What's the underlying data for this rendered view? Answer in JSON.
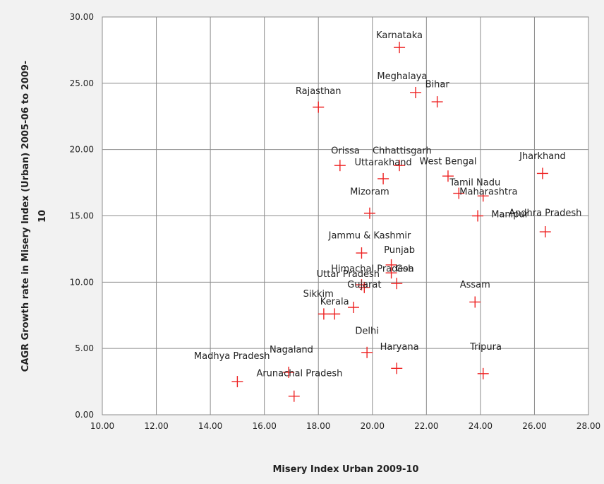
{
  "chart_data": {
    "type": "scatter",
    "title": "",
    "xlabel": "Misery Index Urban 2009-10",
    "ylabel_lines": [
      "CAGR Growth rate in Misery Index (Urban) 2005-06 to 2009-",
      "10"
    ],
    "xlim": [
      10,
      28
    ],
    "ylim": [
      0,
      30
    ],
    "x_ticks": [
      "10.00",
      "12.00",
      "14.00",
      "16.00",
      "18.00",
      "20.00",
      "22.00",
      "24.00",
      "26.00",
      "28.00"
    ],
    "y_ticks": [
      "0.00",
      "5.00",
      "10.00",
      "15.00",
      "20.00",
      "25.00",
      "30.00"
    ],
    "grid": true,
    "legend": "none",
    "marker": "plus",
    "marker_color": "#ee2222",
    "points": [
      {
        "label": "Karnataka",
        "x": 21.0,
        "y": 27.7
      },
      {
        "label": "Meghalaya",
        "x": 21.6,
        "y": 24.3
      },
      {
        "label": "Bihar",
        "x": 22.4,
        "y": 23.6
      },
      {
        "label": "Rajasthan",
        "x": 18.0,
        "y": 23.2
      },
      {
        "label": "Orissa",
        "x": 18.8,
        "y": 18.8
      },
      {
        "label": "Chhattisgarh",
        "x": 21.0,
        "y": 18.8
      },
      {
        "label": "Uttarakhand",
        "x": 20.4,
        "y": 17.8
      },
      {
        "label": "West Bengal",
        "x": 22.8,
        "y": 18.0
      },
      {
        "label": "Jharkhand",
        "x": 26.3,
        "y": 18.2
      },
      {
        "label": "Tamil Nadu",
        "x": 23.2,
        "y": 16.7
      },
      {
        "label": "Maharashtra",
        "x": 24.1,
        "y": 16.5
      },
      {
        "label": "Mizoram",
        "x": 19.9,
        "y": 15.2
      },
      {
        "label": "Manipur",
        "x": 23.9,
        "y": 15.0
      },
      {
        "label": "Andhra Pradesh",
        "x": 26.4,
        "y": 13.8
      },
      {
        "label": "Jammu & Kashmir",
        "x": 19.6,
        "y": 12.2
      },
      {
        "label": "Punjab",
        "x": 20.7,
        "y": 11.3
      },
      {
        "label": "Himachal Pradesh",
        "x": 20.7,
        "y": 10.7
      },
      {
        "label": "Uttar Pradesh",
        "x": 19.6,
        "y": 9.8
      },
      {
        "label": "Goa",
        "x": 20.9,
        "y": 9.9
      },
      {
        "label": "Gujarat",
        "x": 19.7,
        "y": 9.6
      },
      {
        "label": "Assam",
        "x": 23.8,
        "y": 8.5
      },
      {
        "label": "Sikkim",
        "x": 18.2,
        "y": 7.6
      },
      {
        "label": "Kerala",
        "x": 18.6,
        "y": 7.6
      },
      {
        "label": "Kerala-b",
        "x": 19.3,
        "y": 8.1
      },
      {
        "label": "Delhi",
        "x": 19.8,
        "y": 4.7
      },
      {
        "label": "Haryana",
        "x": 20.9,
        "y": 3.5
      },
      {
        "label": "Tripura",
        "x": 24.1,
        "y": 3.1
      },
      {
        "label": "Nagaland",
        "x": 16.9,
        "y": 3.2
      },
      {
        "label": "Madhya Pradesh",
        "x": 15.0,
        "y": 2.5
      },
      {
        "label": "Arunachal Pradesh",
        "x": 17.1,
        "y": 1.4
      }
    ],
    "point_labels": [
      {
        "text": "Karnataka"
      },
      {
        "text": "Meghalaya"
      },
      {
        "text": "Bihar"
      },
      {
        "text": "Rajasthan"
      },
      {
        "text": "Orissa"
      },
      {
        "text": "Chhattisgarh"
      },
      {
        "text": "Uttarakhand"
      },
      {
        "text": "West Bengal"
      },
      {
        "text": "Jharkhand"
      },
      {
        "text": "Tamil Nadu"
      },
      {
        "text": "Maharashtra"
      },
      {
        "text": "Mizoram"
      },
      {
        "text": "Manipur"
      },
      {
        "text": "Andhra Pradesh"
      },
      {
        "text": "Jammu & Kashmir"
      },
      {
        "text": "Punjab"
      },
      {
        "text": "Himachal Pradesh"
      },
      {
        "text": "Uttar Pradesh"
      },
      {
        "text": "Goa"
      },
      {
        "text": "Gujarat"
      },
      {
        "text": "Assam"
      },
      {
        "text": "Sikkim"
      },
      {
        "text": "Kerala"
      },
      {
        "text": "Delhi"
      },
      {
        "text": "Haryana"
      },
      {
        "text": "Tripura"
      },
      {
        "text": "Nagaland"
      },
      {
        "text": "Madhya Pradesh"
      },
      {
        "text": "Arunachal Pradesh"
      }
    ]
  }
}
